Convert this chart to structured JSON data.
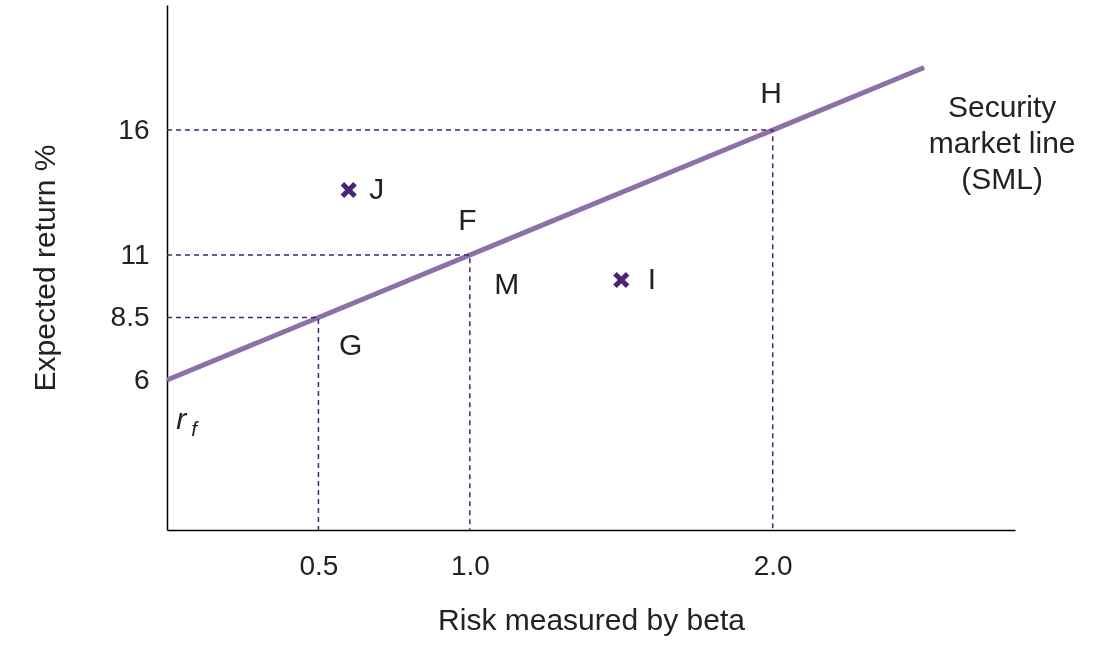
{
  "chart_data": {
    "type": "line",
    "xlabel": "Risk measured by beta",
    "ylabel": "Expected return %",
    "xlim": [
      0,
      2.8
    ],
    "ylim": [
      0,
      21
    ],
    "xticks": [
      0.5,
      {
        "value": 1,
        "label": "1.0"
      },
      {
        "value": 2,
        "label": "2.0"
      }
    ],
    "yticks": [
      6,
      8.5,
      11,
      16
    ],
    "series": [
      {
        "name": "Security market line (SML)",
        "color": "#8e70a8",
        "line_style": "solid",
        "x": [
          0,
          2.5
        ],
        "values": [
          6,
          18.5
        ]
      },
      {
        "color": "#4a2374",
        "line_style": "dashed",
        "x": [
          0,
          0.5,
          0.5
        ],
        "values": [
          8.5,
          8.5,
          0
        ]
      },
      {
        "color": "#4a2374",
        "line_style": "dashed",
        "x": [
          0,
          1,
          1
        ],
        "values": [
          11,
          11,
          0
        ]
      },
      {
        "color": "#4a2374",
        "line_style": "dashed",
        "x": [
          0,
          2,
          2
        ],
        "values": [
          16,
          16,
          0
        ]
      },
      {
        "type": "scatter",
        "color": "#4a2374",
        "marker": "cross",
        "x": [
          0.6,
          1.5
        ],
        "values": [
          13.6,
          10
        ]
      }
    ],
    "annotations": [
      {
        "text": "H",
        "x": 2,
        "y": 16
      },
      {
        "text": "F",
        "x": 1,
        "y": 11
      },
      {
        "text": "G",
        "x": 0.5,
        "y": 8.5
      },
      {
        "text": "M",
        "x": 1,
        "y": 11
      },
      {
        "text": "J",
        "x": 0.6,
        "y": 13.6
      },
      {
        "text": "I",
        "x": 1.5,
        "y": 10
      },
      {
        "text": "r$_{f}$",
        "x": 0,
        "y": 6
      }
    ]
  }
}
